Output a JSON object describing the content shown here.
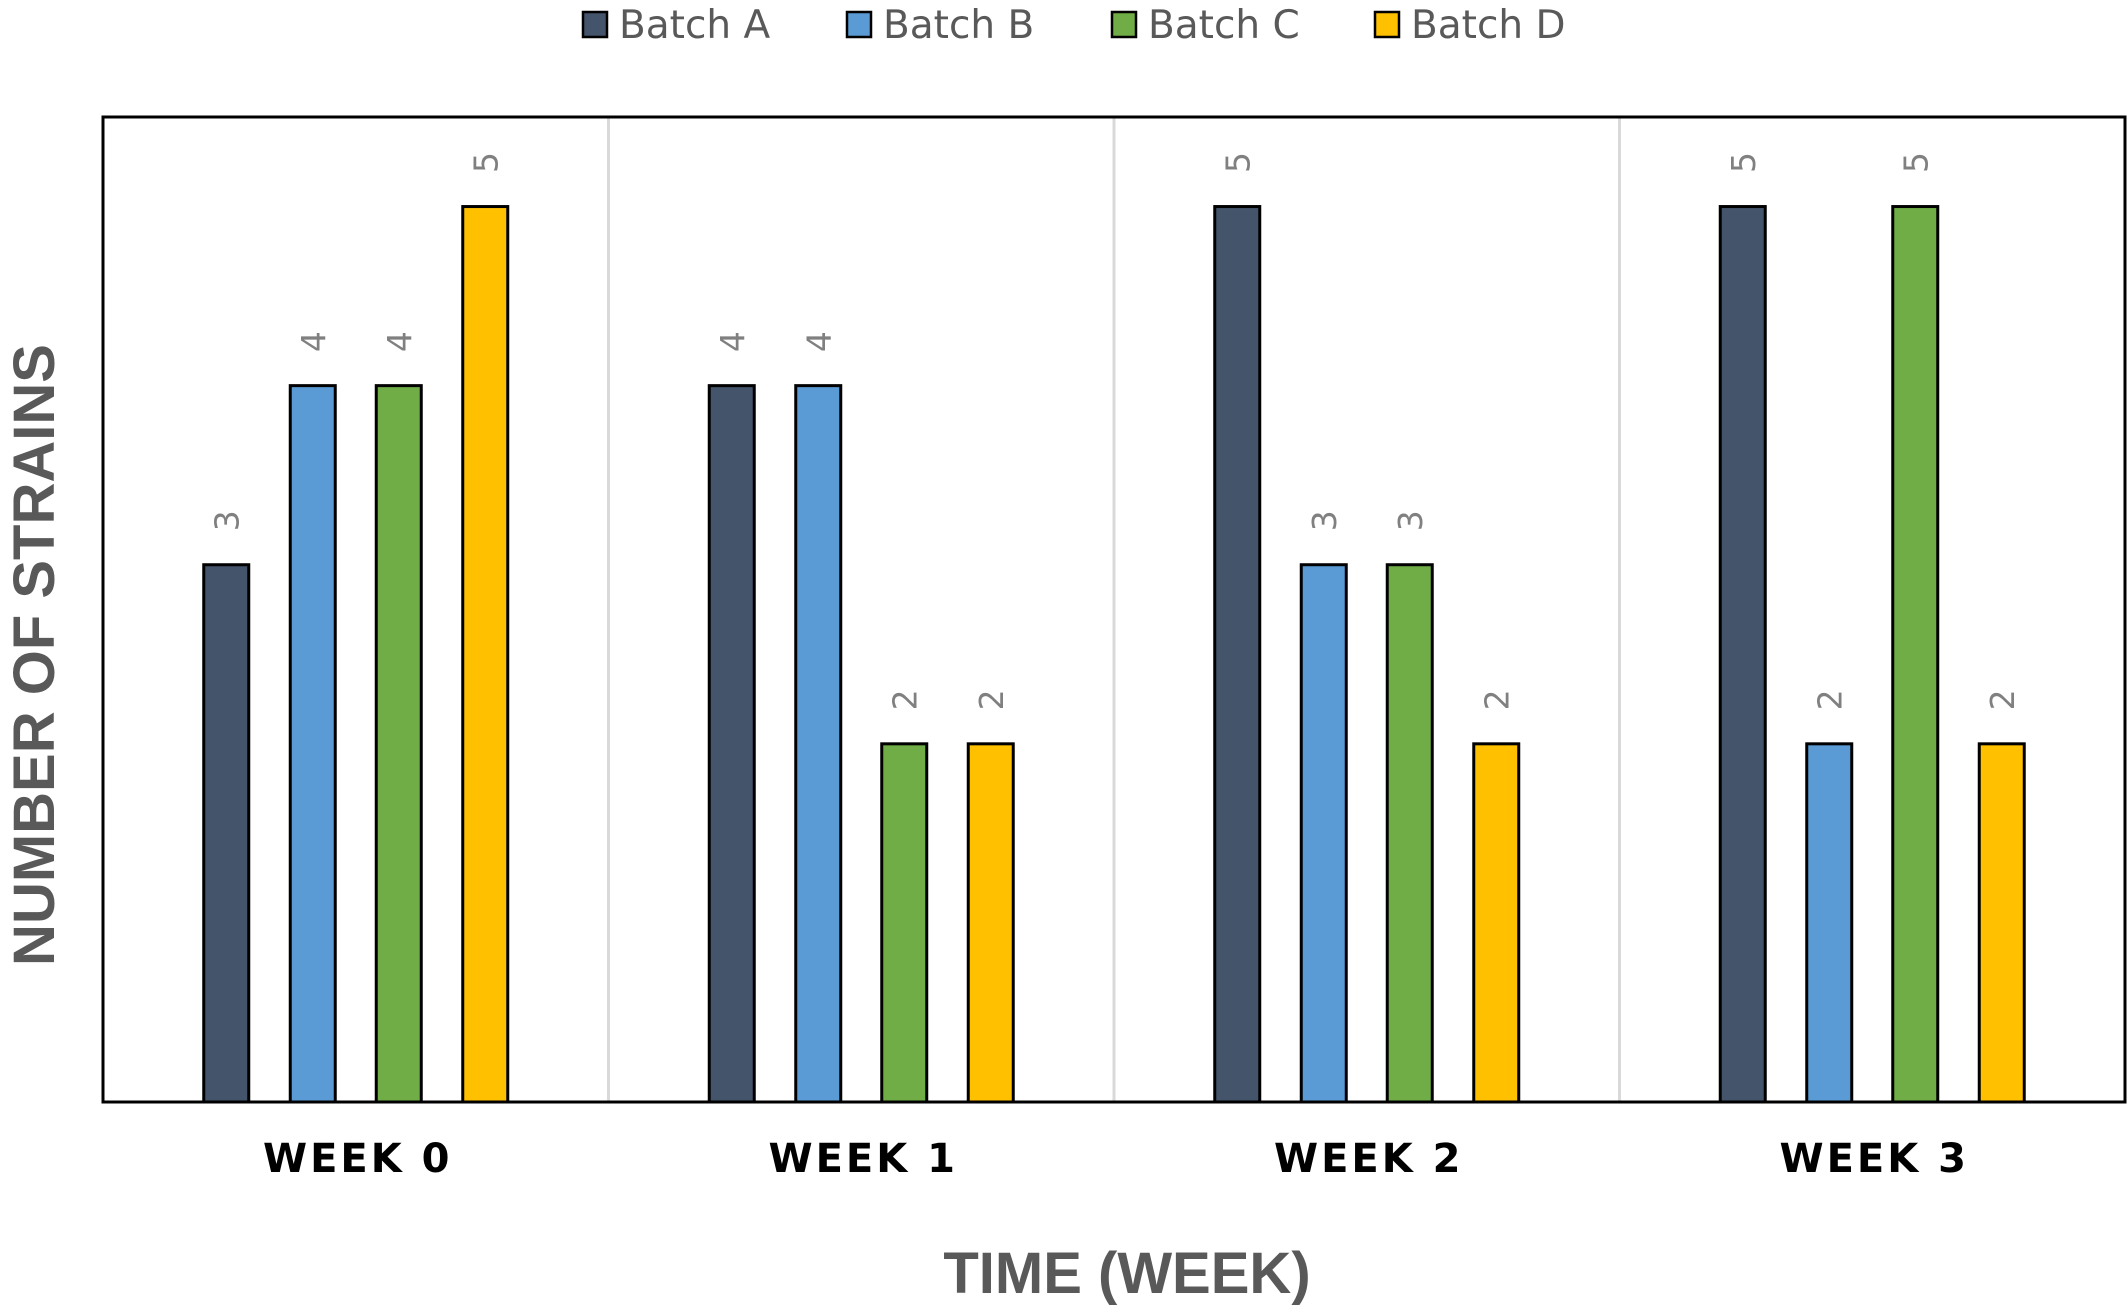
{
  "chart_data": {
    "type": "bar",
    "xlabel": "TIME (WEEK)",
    "ylabel": "NUMBER OF STRAINS",
    "categories": [
      "WEEK 0",
      "WEEK 1",
      "WEEK 2",
      "WEEK 3"
    ],
    "series": [
      {
        "name": "Batch A",
        "color": "#44546a",
        "values": [
          3,
          4,
          5,
          5
        ]
      },
      {
        "name": "Batch B",
        "color": "#5b9bd5",
        "values": [
          4,
          4,
          3,
          2
        ]
      },
      {
        "name": "Batch C",
        "color": "#70ad47",
        "values": [
          4,
          2,
          3,
          5
        ]
      },
      {
        "name": "Batch D",
        "color": "#ffc000",
        "values": [
          5,
          2,
          2,
          2
        ]
      }
    ],
    "ylim": [
      0,
      5.5
    ],
    "data_labels": true,
    "data_label_orientation": "rotated",
    "legend_position": "top",
    "grid": "vertical-separators",
    "frame_color": "#000000",
    "separator_color": "#d9d9d9",
    "bar_outline_color": "#000000"
  }
}
